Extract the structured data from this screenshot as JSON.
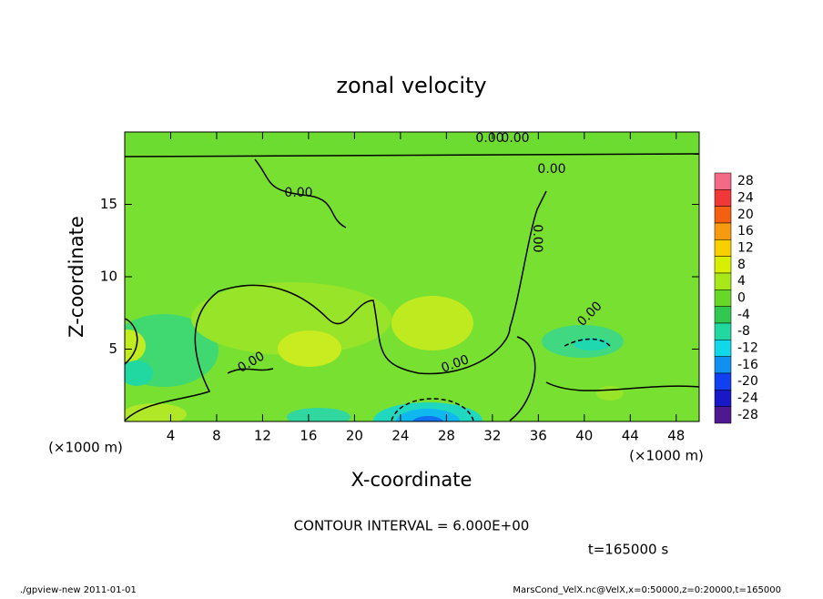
{
  "chart_data": {
    "type": "contour",
    "title": "zonal velocity",
    "x_label": "X-coordinate",
    "y_label": "Z-coordinate",
    "x_unit_left": "(×1000 m)",
    "x_unit_right": "(×1000 m)",
    "xlim": [
      0,
      50
    ],
    "ylim": [
      0,
      20
    ],
    "xticks": [
      4,
      8,
      12,
      16,
      20,
      24,
      28,
      32,
      36,
      40,
      44,
      48
    ],
    "yticks": [
      5,
      10,
      15
    ],
    "colorbar": {
      "levels": [
        28,
        24,
        20,
        16,
        12,
        8,
        4,
        0,
        -4,
        -8,
        -12,
        -16,
        -20,
        -24,
        -28
      ],
      "colors": [
        "#f46a86",
        "#f03838",
        "#f46010",
        "#f89a10",
        "#f8d000",
        "#d8f000",
        "#a8e818",
        "#68d828",
        "#30c850",
        "#20d8a0",
        "#10d8e8",
        "#1090f0",
        "#1040f0",
        "#1818c8",
        "#501890"
      ]
    },
    "contour_labels": [
      "0.00",
      "0.00",
      "0.00",
      "0.00",
      "0.00",
      "0.00",
      "0.00",
      "0.00"
    ],
    "contour_interval": "CONTOUR INTERVAL = 6.000E+00",
    "time_label": "t=165000 s",
    "footer_left": "./gpview-new  2011-01-01",
    "footer_right": "MarsCond_VelX.nc@VelX,x=0:50000,z=0:20000,t=165000"
  }
}
